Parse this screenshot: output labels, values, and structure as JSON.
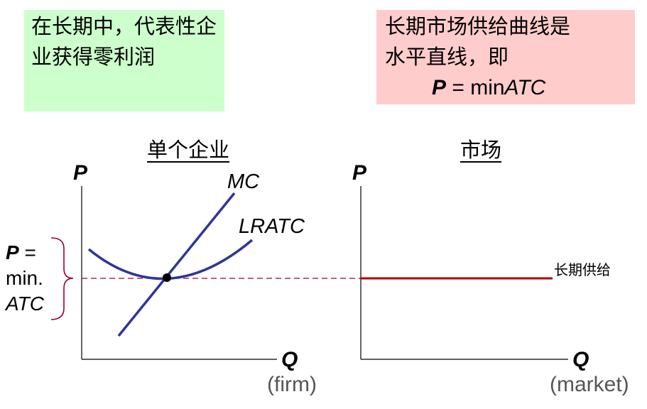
{
  "left_box": {
    "text": "在长期中，代表性企业获得零利润"
  },
  "right_box": {
    "line1": "长期市场供给曲线是",
    "line2": "水平直线，即",
    "formula_p": "P",
    "formula_eq": " = min",
    "formula_atc": "ATC"
  },
  "firm": {
    "title": "单个企业",
    "y_axis": "P",
    "x_axis": "Q",
    "x_sub": "(firm)",
    "mc_label": "MC",
    "lratc_label": "LRATC",
    "price_label": {
      "p": "P",
      "eq": " =",
      "min": "min.",
      "atc": "ATC"
    }
  },
  "market": {
    "title": "市场",
    "y_axis": "P",
    "x_axis": "Q",
    "x_sub": "(market)",
    "supply_label": "长期供给"
  },
  "colors": {
    "curves": "#33339a",
    "supply": "#b20000",
    "brace": "#990033",
    "dashed": "#990033",
    "left_box_bg": "#ccffcc",
    "right_box_bg": "#ffcccc"
  }
}
